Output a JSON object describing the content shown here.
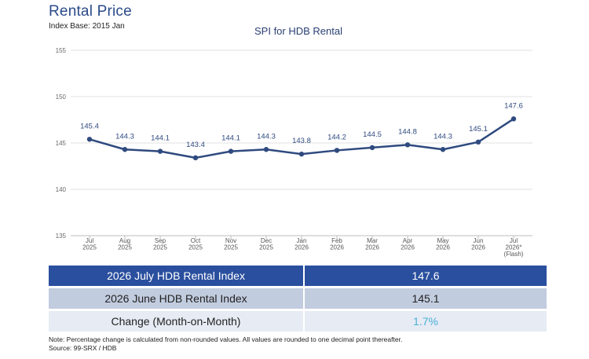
{
  "header": {
    "title": "Rental Price",
    "subtitle": "Index Base: 2015 Jan"
  },
  "chart_data": {
    "type": "line",
    "title": "SPI for HDB Rental",
    "xlabel": "",
    "ylabel": "",
    "ylim": [
      135,
      155
    ],
    "yticks": [
      "135",
      "140",
      "145",
      "150",
      "155"
    ],
    "grid": true,
    "categories": [
      [
        "Jul",
        "2025"
      ],
      [
        "Aug",
        "2025"
      ],
      [
        "Sep",
        "2025"
      ],
      [
        "Oct",
        "2025"
      ],
      [
        "Nov",
        "2025"
      ],
      [
        "Dec",
        "2025"
      ],
      [
        "Jan",
        "2026"
      ],
      [
        "Feb",
        "2026"
      ],
      [
        "Mar",
        "2026"
      ],
      [
        "Apr",
        "2026"
      ],
      [
        "May",
        "2026"
      ],
      [
        "Jun",
        "2026"
      ],
      [
        "Jul",
        "2026*",
        "(Flash)"
      ]
    ],
    "series": [
      {
        "values": [
          145.4,
          144.3,
          144.1,
          143.4,
          144.1,
          144.3,
          143.8,
          144.2,
          144.5,
          144.8,
          144.3,
          145.1,
          147.6
        ],
        "labels": [
          "145.4",
          "144.3",
          "144.1",
          "143.4",
          "144.1",
          "144.3",
          "143.8",
          "144.2",
          "144.5",
          "144.8",
          "144.3",
          "145.1",
          "147.6"
        ],
        "color": "#2f4a7f"
      }
    ]
  },
  "summary": {
    "rows": [
      {
        "label": "2026 July HDB Rental Index",
        "value": "147.6"
      },
      {
        "label": "2026 June HDB Rental Index",
        "value": "145.1"
      },
      {
        "label": "Change (Month-on-Month)",
        "value": "1.7%"
      }
    ]
  },
  "notes": {
    "line1": "Note: Percentage change is calculated from non-rounded values.  All values are rounded to one decimal point thereafter.",
    "line2": "Source: 99-SRX / HDB"
  },
  "colors": {
    "header_row": "#2a4f9e",
    "line": "#2f4a7f",
    "change_value": "#4bb0d8"
  }
}
